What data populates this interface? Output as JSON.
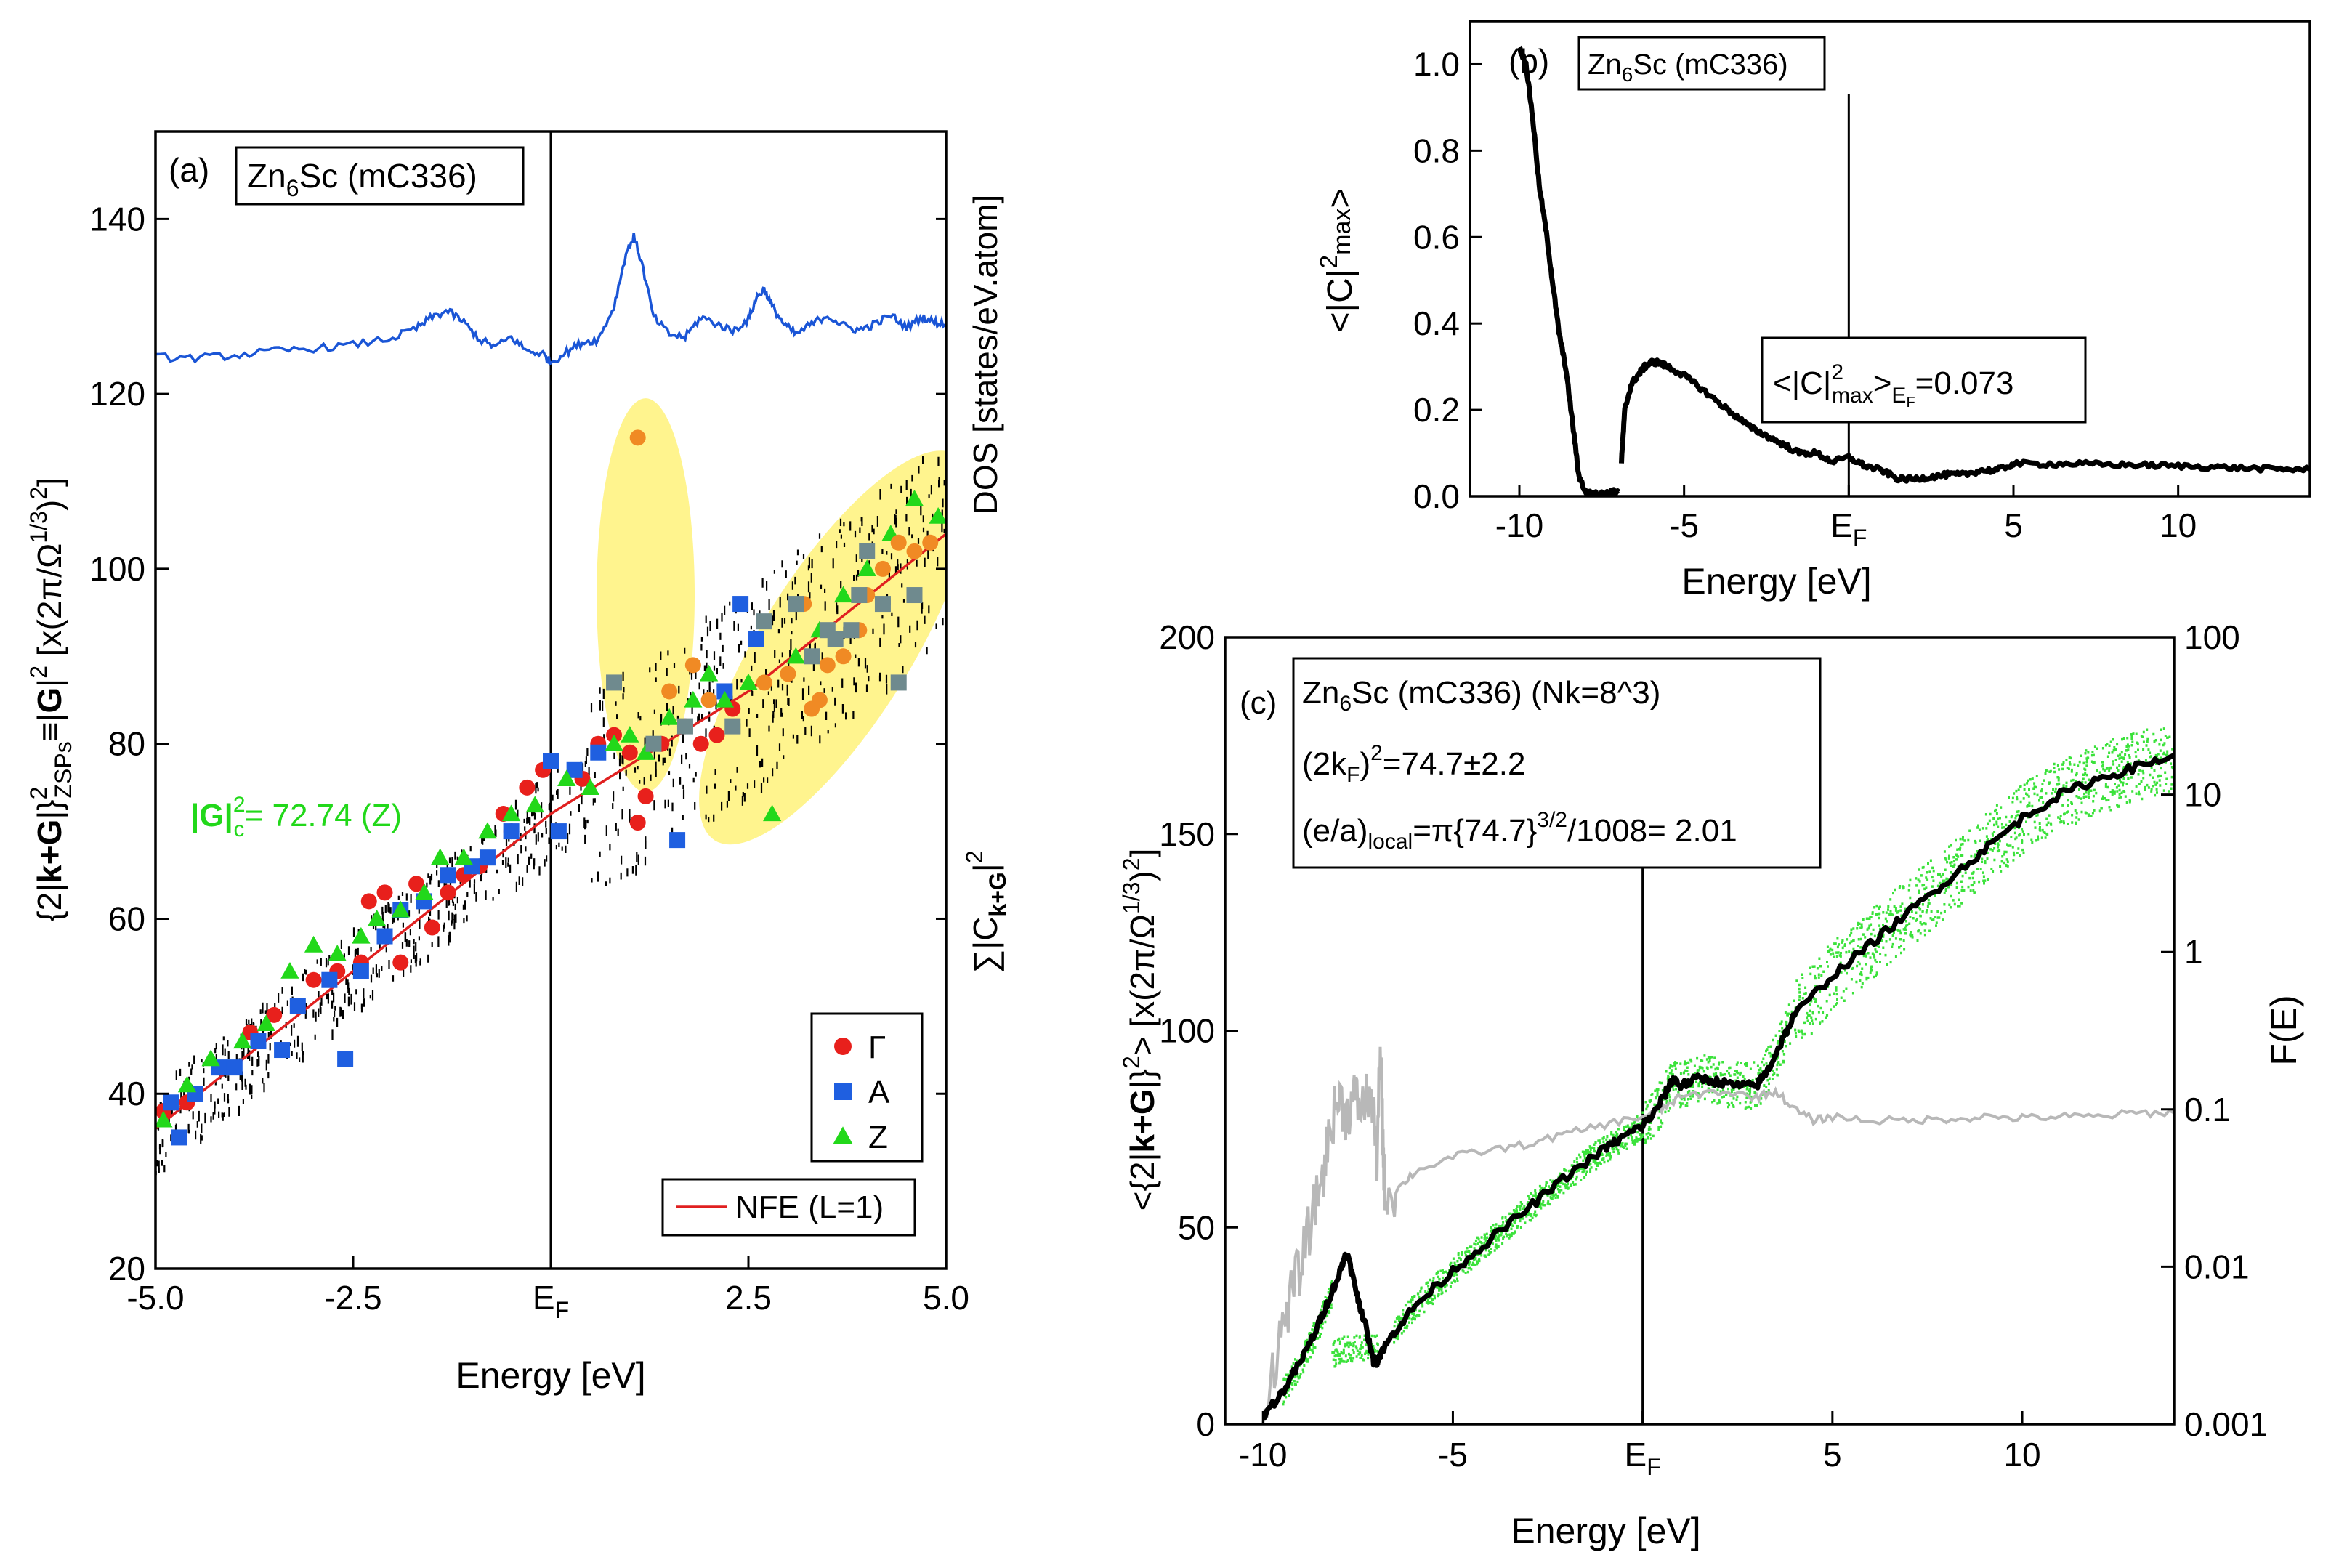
{
  "colors": {
    "red": "#e8201c",
    "blue": "#1f5fe0",
    "green": "#22d81a",
    "orange": "#f08a24",
    "gray": "#6f8a8e",
    "dos": "#1a55d6",
    "nfe": "#e02020",
    "highlight": "#fff27a",
    "lightgray": "#b8b8b8",
    "greendots": "#3be23b"
  },
  "chart_data": [
    {
      "id": "a",
      "type": "scatter",
      "panel_label": "(a)",
      "compound": {
        "base": "Zn",
        "sub": "6",
        "rest": "Sc (mC336)"
      },
      "xlabel": "Energy [eV]",
      "ylabel": {
        "pre": "{2|",
        "bold1": "k+G",
        "mid": "|}",
        "sup1": "2",
        "sub1": "ZSPs",
        "eq": "≡|",
        "bold2": "G",
        "post": "|",
        "sup2": "2",
        "tail": " [x(2π/Ω",
        "sup3": "1/3",
        "tail2": ")",
        "sup4": "2",
        "tail3": "]"
      },
      "ylabel_right_top": "DOS [states/eV.atom]",
      "ylabel_right_bottom": {
        "pre": "∑|C",
        "sub": "k+G",
        "post": "|",
        "sup": "2"
      },
      "xlim": [
        -5,
        5
      ],
      "ylim": [
        20,
        150
      ],
      "xticks": [
        -5.0,
        -2.5,
        0,
        2.5,
        5.0
      ],
      "xtick_labels": [
        "-5.0",
        "-2.5",
        "E",
        "2.5",
        "5.0"
      ],
      "xtick_fermi_sub": "F",
      "yticks": [
        20,
        40,
        60,
        80,
        100,
        120,
        140
      ],
      "fermi_energy": 0,
      "annotation": {
        "bold": "|G|",
        "sup": "2",
        "sub": "c",
        "text": "= 72.74 (Z)"
      },
      "legend": [
        {
          "symbol": "circle",
          "label": "Γ"
        },
        {
          "symbol": "square",
          "label": "A"
        },
        {
          "symbol": "triangle",
          "label": "Z"
        }
      ],
      "line_legend": "NFE (L=1)",
      "nfe_line": {
        "x": [
          -5,
          -2.5,
          0,
          2.5,
          5
        ],
        "y": [
          36,
          54,
          72,
          86,
          104
        ]
      },
      "dos_curve": {
        "x": [
          -5.0,
          -4.5,
          -4.0,
          -3.5,
          -3.0,
          -2.5,
          -2.0,
          -1.7,
          -1.5,
          -1.3,
          -1.1,
          -0.9,
          -0.7,
          -0.5,
          -0.3,
          -0.1,
          0.0,
          0.2,
          0.4,
          0.6,
          0.8,
          0.95,
          1.05,
          1.15,
          1.3,
          1.5,
          1.7,
          1.9,
          2.1,
          2.3,
          2.5,
          2.6,
          2.7,
          2.8,
          2.95,
          3.1,
          3.3,
          3.5,
          3.7,
          3.9,
          4.1,
          4.3,
          4.5,
          4.7,
          4.85,
          5.0
        ],
        "y": [
          124.2,
          124.1,
          124.4,
          124.9,
          125.2,
          125.6,
          126.4,
          127.5,
          128.8,
          129.5,
          128.2,
          126.2,
          125.4,
          126.5,
          124.9,
          124.6,
          123.6,
          124.8,
          125.9,
          126.2,
          130.0,
          136.0,
          138.0,
          135.0,
          128.8,
          126.8,
          126.5,
          128.8,
          128.0,
          127.2,
          128.5,
          131.0,
          132.0,
          130.0,
          128.0,
          126.8,
          128.0,
          129.0,
          127.8,
          127.3,
          128.0,
          129.0,
          127.6,
          128.8,
          128.2,
          128.0
        ]
      },
      "highlights": [
        {
          "cx": 1.2,
          "cy": 97,
          "rx": 0.62,
          "ry": 22.5,
          "rotation_deg": 0
        },
        {
          "cx": 3.6,
          "cy": 91,
          "rx": 0.95,
          "ry": 26,
          "rotation_deg": 32
        }
      ],
      "series": [
        {
          "name": "Γ",
          "marker": "circle",
          "x": [
            -4.9,
            -4.6,
            -3.8,
            -3.5,
            -3.2,
            -3.0,
            -2.7,
            -2.4,
            -2.3,
            -2.1,
            -1.9,
            -1.7,
            -1.5,
            -1.3,
            -1.1,
            -0.9,
            -0.6,
            -0.5,
            -0.3,
            -0.1,
            0.4,
            0.6,
            0.8,
            1.0,
            1.1,
            1.2,
            1.4,
            1.7,
            1.9,
            2.1,
            2.3
          ],
          "y": [
            38,
            39,
            47,
            49,
            50,
            53,
            54,
            55,
            62,
            63,
            55,
            64,
            59,
            63,
            65,
            66,
            72,
            70,
            75,
            77,
            76,
            80,
            81,
            79,
            71,
            74,
            80,
            82,
            80,
            81,
            84
          ]
        },
        {
          "name": "A",
          "marker": "square",
          "x": [
            -4.8,
            -4.7,
            -4.5,
            -4.2,
            -4.0,
            -3.7,
            -3.4,
            -3.2,
            -2.8,
            -2.6,
            -2.4,
            -2.1,
            -1.9,
            -1.6,
            -1.3,
            -1.0,
            -0.8,
            -0.5,
            0.0,
            0.1,
            0.3,
            0.6,
            1.6,
            2.2,
            2.4,
            2.6
          ],
          "y": [
            39,
            35,
            40,
            43,
            43,
            46,
            45,
            50,
            53,
            44,
            54,
            58,
            61,
            62,
            65,
            66,
            67,
            70,
            78,
            70,
            77,
            79,
            69,
            86,
            96,
            92
          ]
        },
        {
          "name": "Z",
          "marker": "triangle",
          "x": [
            -4.9,
            -4.6,
            -4.3,
            -3.9,
            -3.6,
            -3.3,
            -3.0,
            -2.7,
            -2.4,
            -2.2,
            -1.9,
            -1.6,
            -1.4,
            -1.1,
            -0.8,
            -0.5,
            -0.2,
            0.2,
            0.5,
            0.8,
            1.0,
            1.2,
            1.5,
            1.8,
            2.0,
            2.2,
            2.5,
            2.8,
            3.1,
            3.4,
            3.7,
            4.0,
            4.3,
            4.6,
            4.9
          ],
          "y": [
            37,
            41,
            44,
            46,
            48,
            54,
            57,
            56,
            58,
            60,
            61,
            63,
            67,
            67,
            70,
            72,
            73,
            76,
            75,
            80,
            81,
            79,
            83,
            85,
            88,
            85,
            87,
            72,
            90,
            93,
            97,
            100,
            104,
            108,
            106
          ]
        },
        {
          "name": "orange",
          "marker": "circle",
          "x": [
            1.1,
            1.5,
            1.8,
            2.0,
            2.7,
            3.0,
            3.2,
            3.3,
            3.4,
            3.5,
            3.7,
            3.9,
            4.0,
            4.2,
            4.4,
            4.6,
            4.8
          ],
          "y": [
            115,
            86,
            89,
            85,
            87,
            88,
            96,
            84,
            85,
            89,
            90,
            93,
            97,
            100,
            103,
            102,
            103
          ]
        },
        {
          "name": "gray",
          "marker": "square",
          "x": [
            0.8,
            1.3,
            1.7,
            2.3,
            2.7,
            3.1,
            3.3,
            3.5,
            3.6,
            3.8,
            3.9,
            4.0,
            4.2,
            4.4,
            4.6
          ],
          "y": [
            87,
            80,
            82,
            82,
            94,
            96,
            90,
            93,
            92,
            93,
            97,
            102,
            96,
            87,
            97
          ]
        }
      ]
    },
    {
      "id": "b",
      "type": "line",
      "panel_label": "(b)",
      "compound": {
        "base": "Zn",
        "sub": "6",
        "rest": "Sc (mC336)"
      },
      "xlabel": "Energy [eV]",
      "ylabel": {
        "pre": "<|C|",
        "sup": "2",
        "sub": "max",
        "post": ">"
      },
      "xlim": [
        -11.5,
        14
      ],
      "ylim": [
        0,
        1.1
      ],
      "xticks": [
        -10,
        -5,
        0,
        5,
        10
      ],
      "xtick_labels": [
        "-10",
        "-5",
        "E",
        "5",
        "10"
      ],
      "xtick_fermi_sub": "F",
      "yticks": [
        0.0,
        0.2,
        0.4,
        0.6,
        0.8,
        1.0
      ],
      "ytick_labels": [
        "0.0",
        "0.2",
        "0.4",
        "0.6",
        "0.8",
        "1.0"
      ],
      "fermi_energy": 0,
      "box_annotation": {
        "pre": "<|C|",
        "sup": "2",
        "sub": "max",
        "close": ">",
        "sub2": "E",
        "sub3": "F",
        "value": "=0.073"
      },
      "series_segments": [
        {
          "x": [
            -10.0,
            -9.8,
            -9.6,
            -9.4,
            -9.2,
            -9.0,
            -8.8,
            -8.6,
            -8.4,
            -8.2,
            -8.0,
            -7.8,
            -7.6,
            -7.4,
            -7.2,
            -7.0
          ],
          "y": [
            1.04,
            1.0,
            0.88,
            0.72,
            0.62,
            0.5,
            0.38,
            0.3,
            0.18,
            0.05,
            0.01,
            0.005,
            0.005,
            0.005,
            0.01,
            0.01
          ]
        },
        {
          "x": [
            -6.9,
            -6.8,
            -6.6,
            -6.4,
            -6.2,
            -6.0,
            -5.8,
            -5.5,
            -5.0,
            -4.5,
            -4.0,
            -3.5,
            -3.0,
            -2.5,
            -2.0,
            -1.5,
            -1.0,
            -0.5,
            0.0,
            0.5,
            1.0,
            1.5,
            2.0,
            2.5,
            3.0,
            3.5,
            4.0,
            4.5,
            5.0,
            6.0,
            7.0,
            8.0,
            9.0,
            10.0,
            11.0,
            12.0,
            13.0,
            14.0
          ],
          "y": [
            0.08,
            0.2,
            0.26,
            0.28,
            0.3,
            0.31,
            0.31,
            0.3,
            0.28,
            0.25,
            0.22,
            0.19,
            0.16,
            0.14,
            0.12,
            0.1,
            0.1,
            0.08,
            0.09,
            0.07,
            0.06,
            0.04,
            0.04,
            0.045,
            0.05,
            0.05,
            0.06,
            0.06,
            0.075,
            0.075,
            0.075,
            0.073,
            0.072,
            0.07,
            0.068,
            0.065,
            0.063,
            0.062
          ]
        }
      ]
    },
    {
      "id": "c",
      "type": "line",
      "panel_label": "(c)",
      "compound": {
        "base": "Zn",
        "sub": "6",
        "rest": "Sc (mC336) (Nk=8^3)"
      },
      "info_line2": {
        "pre": "(2k",
        "sub": "F",
        "post": ")",
        "sup": "2",
        "value": "=74.7±2.2"
      },
      "info_line3": {
        "pre": "(e/a)",
        "sub": "local",
        "mid": "=π{74.7}",
        "sup": "3/2",
        "post": "/1008= 2.01"
      },
      "xlabel": "Energy [eV]",
      "ylabel": {
        "pre": "<{2|",
        "bold": "k+G",
        "mid": "|}",
        "sup": "2",
        "post": "> [x(2π/Ω",
        "sup2": "1/3",
        "post2": ")",
        "sup3": "2",
        "tail": "]"
      },
      "ylabel_right": "F(E)",
      "xlim": [
        -11,
        14
      ],
      "ylim": [
        0,
        200
      ],
      "xticks": [
        -10,
        -5,
        0,
        5,
        10
      ],
      "xtick_labels": [
        "-10",
        "-5",
        "E",
        "5",
        "10"
      ],
      "xtick_fermi_sub": "F",
      "yticks": [
        0,
        50,
        100,
        150,
        200
      ],
      "y2_log_range": [
        0.001,
        100
      ],
      "y2ticks": [
        0.001,
        0.01,
        0.1,
        1,
        10,
        100
      ],
      "y2tick_labels": [
        "0.001",
        "0.01",
        "0.1",
        "1",
        "10",
        "100"
      ],
      "fermi_energy": 0,
      "black_series": {
        "x": [
          -10.0,
          -9.5,
          -9.0,
          -8.6,
          -8.3,
          -8.0,
          -7.8,
          -7.6,
          -7.5,
          -7.3,
          -7.1,
          -7.0,
          -6.9,
          -6.5,
          -6.0,
          -5.0,
          -4.0,
          -3.0,
          -2.0,
          -1.0,
          -0.5,
          0.0,
          0.3,
          0.6,
          0.8,
          1.0,
          1.5,
          2.0,
          2.5,
          3.0,
          3.3,
          3.6,
          4.0,
          5.0,
          6.0,
          7.0,
          8.0,
          9.0,
          10.0,
          11.0,
          12.0,
          13.0,
          14.0
        ],
        "y": [
          2,
          8,
          16,
          24,
          31,
          38,
          44,
          36,
          32,
          25,
          16,
          16,
          18,
          24,
          30,
          39,
          47,
          55,
          63,
          70,
          73,
          76,
          79,
          84,
          88,
          86,
          88,
          87,
          86,
          86,
          90,
          96,
          104,
          114,
          122,
          130,
          138,
          146,
          154,
          160,
          164,
          167,
          170
        ]
      },
      "gray_series": {
        "x": [
          -10.0,
          -9.6,
          -9.3,
          -9.0,
          -8.7,
          -8.4,
          -8.2,
          -8.0,
          -7.8,
          -7.6,
          -7.4,
          -7.2,
          -7.0,
          -6.9,
          -6.85,
          -6.8,
          -6.5,
          -6.0,
          -5.0,
          -4.0,
          -3.0,
          -2.0,
          -1.0,
          0.0,
          0.5,
          1.0,
          2.0,
          3.0,
          3.5,
          4.0,
          4.5,
          5.0,
          6.0,
          7.0,
          8.0,
          9.0,
          10.0,
          11.0,
          12.0,
          13.0,
          14.0
        ],
        "y": [
          0.001,
          0.003,
          0.006,
          0.01,
          0.02,
          0.04,
          0.08,
          0.12,
          0.09,
          0.12,
          0.1,
          0.13,
          0.05,
          0.2,
          0.07,
          0.03,
          0.03,
          0.04,
          0.05,
          0.055,
          0.06,
          0.07,
          0.08,
          0.09,
          0.1,
          0.12,
          0.13,
          0.12,
          0.13,
          0.1,
          0.085,
          0.09,
          0.085,
          0.085,
          0.087,
          0.09,
          0.088,
          0.09,
          0.09,
          0.095,
          0.095
        ]
      }
    }
  ]
}
